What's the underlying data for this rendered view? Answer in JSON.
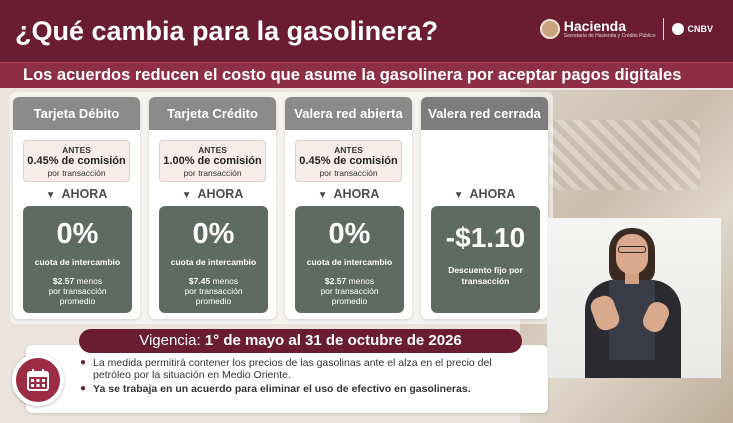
{
  "header": {
    "title": "¿Qué cambia para la gasolinera?",
    "logo_hacienda": "Hacienda",
    "logo_hacienda_sub": "Secretaría de Hacienda y Crédito Público",
    "logo_cnbv": "CNBV"
  },
  "subheader": {
    "text": "Los acuerdos reducen el costo que asume la gasolinera por aceptar pagos digitales"
  },
  "cards": [
    {
      "title": "Tarjeta Débito",
      "antes_label": "ANTES",
      "antes_rate": "0.45% de comisión",
      "antes_note": "por transacción",
      "ahora_label": "AHORA",
      "value": "0%",
      "cuota": "cuota de intercambio",
      "detail_amount": "$2.57",
      "detail_rest": " menos",
      "detail_line2": "por transacción",
      "detail_line3": "promedio"
    },
    {
      "title": "Tarjeta Crédito",
      "antes_label": "ANTES",
      "antes_rate": "1.00% de comisión",
      "antes_note": "por transacción",
      "ahora_label": "AHORA",
      "value": "0%",
      "cuota": "cuota de intercambio",
      "detail_amount": "$7.45",
      "detail_rest": " menos",
      "detail_line2": "por transacción",
      "detail_line3": "promedio"
    },
    {
      "title": "Valera red abierta",
      "antes_label": "ANTES",
      "antes_rate": "0.45% de comisión",
      "antes_note": "por transacción",
      "ahora_label": "AHORA",
      "value": "0%",
      "cuota": "cuota de intercambio",
      "detail_amount": "$2.57",
      "detail_rest": " menos",
      "detail_line2": "por transacción",
      "detail_line3": "promedio"
    },
    {
      "title": "Valera red cerrada",
      "ahora_label": "AHORA",
      "value": "-$1.10",
      "fijo": "Descuento fijo por transacción"
    }
  ],
  "vigencia": {
    "label": "Vigencia: ",
    "dates": "1° de mayo al 31 de octubre de 2026"
  },
  "bullets": [
    "La medida permitirá contener los precios de las gasolinas ante el alza en el precio del petróleo por la situación en Medio Oriente.",
    "Ya se trabaja en un acuerdo para eliminar el uso de efectivo en gasolineras."
  ],
  "colors": {
    "brand": "#691c32",
    "brand_light": "#8e2f45",
    "card_head": "#8a8a8a",
    "ahora_box": "#5e6b63"
  },
  "icons": {
    "calendar": "calendar-icon",
    "arrow_down": "triangle-down-icon"
  }
}
